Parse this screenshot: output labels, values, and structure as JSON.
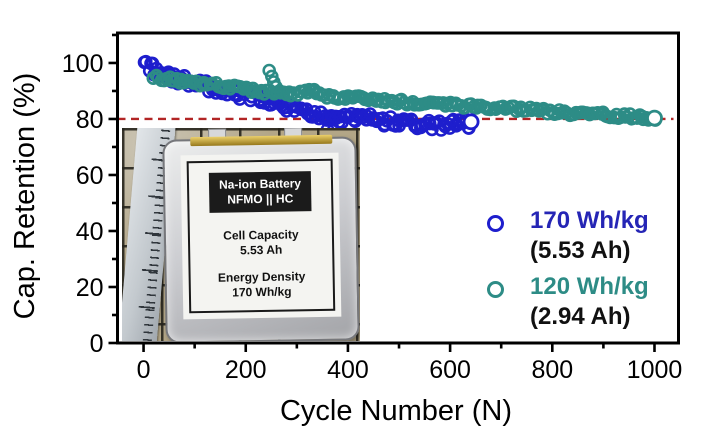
{
  "chart_data": {
    "type": "scatter",
    "title": "",
    "xlabel": "Cycle Number (N)",
    "ylabel": "Cap. Retention (%)",
    "xlim": [
      -51,
      1047
    ],
    "ylim": [
      0,
      110.7
    ],
    "x_major_ticks": [
      0,
      200,
      400,
      600,
      800,
      1000
    ],
    "x_minor_ticks": [
      100,
      300,
      500,
      700,
      900
    ],
    "y_major_ticks": [
      0,
      20,
      40,
      60,
      80,
      100
    ],
    "y_minor_ticks": [
      10,
      30,
      50,
      70,
      90,
      110
    ],
    "grid": false,
    "legend_position": "lower right",
    "frame_color": "#000000",
    "reference_line": {
      "y": 80,
      "color": "#b22525",
      "style": "dashed"
    },
    "series": [
      {
        "name": "170 Wh/kg",
        "capacity": "(5.53 Ah)",
        "marker": "open-circle",
        "color": "#1e1ecd",
        "label_color": "#2525b5",
        "point_step_cycles": 4,
        "noise_pct": 1.9,
        "trend": [
          [
            2,
            100
          ],
          [
            30,
            96.5
          ],
          [
            60,
            94.5
          ],
          [
            100,
            92.5
          ],
          [
            150,
            90.5
          ],
          [
            200,
            88.5
          ],
          [
            250,
            86
          ],
          [
            300,
            83.5
          ],
          [
            340,
            81
          ],
          [
            370,
            79
          ],
          [
            400,
            80
          ],
          [
            440,
            80.2
          ],
          [
            480,
            79
          ],
          [
            520,
            78.5
          ],
          [
            560,
            77.5
          ],
          [
            600,
            78
          ],
          [
            641,
            78.6
          ]
        ],
        "outliers": [
          [
            360,
            76.3
          ],
          [
            372,
            76
          ]
        ],
        "final_point": [
          641,
          79
        ]
      },
      {
        "name": "120 Wh/kg",
        "capacity": "(2.94 Ah)",
        "marker": "open-circle",
        "color": "#2d8c86",
        "label_color": "#2d8c86",
        "point_step_cycles": 5,
        "noise_pct": 0.9,
        "trend": [
          [
            20,
            95.2
          ],
          [
            60,
            93.8
          ],
          [
            100,
            92.8
          ],
          [
            150,
            92
          ],
          [
            200,
            90.5
          ],
          [
            250,
            89.3
          ],
          [
            300,
            88.8
          ],
          [
            335,
            90.2
          ],
          [
            360,
            88.3
          ],
          [
            400,
            87.6
          ],
          [
            450,
            87
          ],
          [
            500,
            86.2
          ],
          [
            550,
            85.5
          ],
          [
            600,
            85
          ],
          [
            650,
            84.5
          ],
          [
            700,
            84
          ],
          [
            750,
            83.4
          ],
          [
            800,
            82.6
          ],
          [
            850,
            82
          ],
          [
            900,
            81.5
          ],
          [
            950,
            80.9
          ],
          [
            1000,
            80.3
          ]
        ],
        "outliers": [
          [
            246,
            97.3
          ],
          [
            251,
            95.2
          ],
          [
            255,
            93.2
          ],
          [
            259,
            91.5
          ]
        ],
        "final_point": [
          1000,
          80.3
        ]
      }
    ]
  },
  "legend": {
    "entries": [
      {
        "label": "170 Wh/kg",
        "sublabel": "(5.53 Ah)",
        "text_color": "#2525b5",
        "marker_color": "#1e1ecd"
      },
      {
        "label": "120 Wh/kg",
        "sublabel": "(2.94 Ah)",
        "text_color": "#2d8c86",
        "marker_color": "#2d8c86"
      }
    ]
  },
  "inset": {
    "header_line1": "Na-ion Battery",
    "header_line2": "NFMO || HC",
    "capacity_title": "Cell Capacity",
    "capacity_value": "5.53 Ah",
    "energy_title": "Energy Density",
    "energy_value": "170 Wh/kg"
  }
}
